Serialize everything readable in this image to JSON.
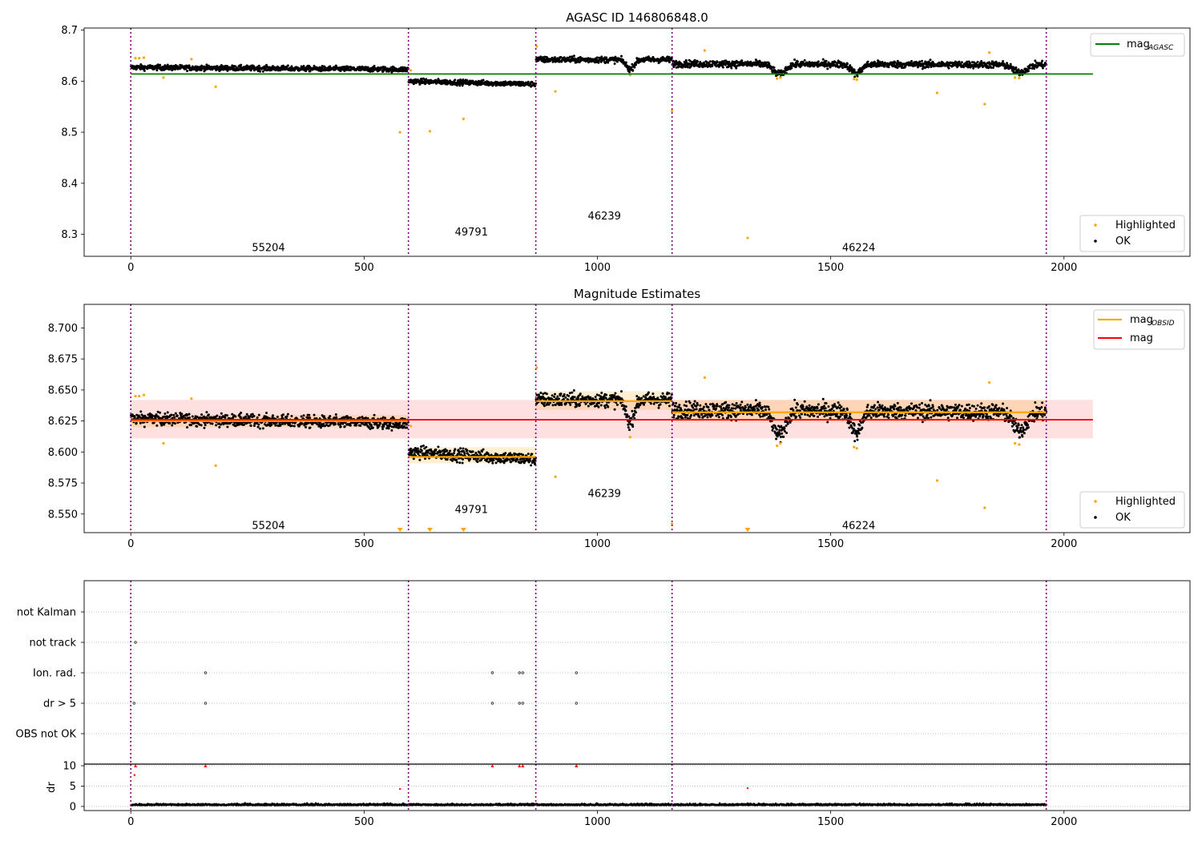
{
  "chart_data": [
    {
      "type": "scatter",
      "title": "AGASC ID 146806848.0",
      "xlim": [
        -100,
        2270
      ],
      "ylim": [
        8.257,
        8.704
      ],
      "x_ticks": [
        0,
        500,
        1000,
        1500,
        2000
      ],
      "y_ticks": [
        8.3,
        8.4,
        8.5,
        8.6,
        8.7
      ],
      "y_tick_labels": [
        "8.3",
        "8.4",
        "8.5",
        "8.6",
        "8.7"
      ],
      "legend_upper": {
        "location": "upper-right",
        "entries": [
          {
            "label": "mag",
            "subscript": "AGASC",
            "color": "#008000"
          }
        ]
      },
      "legend_lower": {
        "location": "lower-right",
        "entries": [
          {
            "label": "Highlighted",
            "color": "#ffa500"
          },
          {
            "label": "OK",
            "color": "#000000"
          }
        ]
      },
      "obsid_boundaries": [
        0,
        595,
        868,
        1160,
        1962
      ],
      "obsids": [
        {
          "label": "55204",
          "x": 295,
          "y": 8.275
        },
        {
          "label": "49791",
          "x": 730,
          "y": 8.306
        },
        {
          "label": "46239",
          "x": 1015,
          "y": 8.337
        },
        {
          "label": "46224",
          "x": 1560,
          "y": 8.275
        }
      ],
      "mag_agasc": {
        "value": 8.614,
        "x_range": [
          0,
          2062
        ]
      },
      "ok_segments": [
        {
          "x_range": [
            0,
            595
          ],
          "mean": 8.625,
          "spread": 0.006,
          "trend": -0.004
        },
        {
          "x_range": [
            595,
            868
          ],
          "mean": 8.597,
          "spread": 0.006,
          "trend": -0.006
        },
        {
          "x_range": [
            868,
            1160
          ],
          "mean": 8.642,
          "spread": 0.007,
          "trend": 0.0
        },
        {
          "x_range": [
            1160,
            1962
          ],
          "mean": 8.633,
          "spread": 0.008,
          "trend": -0.002
        }
      ],
      "ok_dips": [
        {
          "x": 1070,
          "depth": 0.018,
          "width": 12
        },
        {
          "x": 1390,
          "depth": 0.02,
          "width": 18
        },
        {
          "x": 1555,
          "depth": 0.018,
          "width": 15
        },
        {
          "x": 1905,
          "depth": 0.015,
          "width": 20
        }
      ],
      "highlighted": [
        {
          "x": 10,
          "y": 8.645
        },
        {
          "x": 18,
          "y": 8.645
        },
        {
          "x": 28,
          "y": 8.646
        },
        {
          "x": 70,
          "y": 8.607
        },
        {
          "x": 130,
          "y": 8.643
        },
        {
          "x": 182,
          "y": 8.589
        },
        {
          "x": 577,
          "y": 8.5
        },
        {
          "x": 600,
          "y": 8.621
        },
        {
          "x": 641,
          "y": 8.502
        },
        {
          "x": 713,
          "y": 8.526
        },
        {
          "x": 870,
          "y": 8.668
        },
        {
          "x": 910,
          "y": 8.58
        },
        {
          "x": 1070,
          "y": 8.612
        },
        {
          "x": 1160,
          "y": 8.542
        },
        {
          "x": 1230,
          "y": 8.66
        },
        {
          "x": 1322,
          "y": 8.293
        },
        {
          "x": 1385,
          "y": 8.605
        },
        {
          "x": 1392,
          "y": 8.607
        },
        {
          "x": 1550,
          "y": 8.604
        },
        {
          "x": 1556,
          "y": 8.603
        },
        {
          "x": 1728,
          "y": 8.577
        },
        {
          "x": 1830,
          "y": 8.555
        },
        {
          "x": 1840,
          "y": 8.656
        },
        {
          "x": 1895,
          "y": 8.607
        },
        {
          "x": 1904,
          "y": 8.606
        }
      ]
    },
    {
      "type": "scatter",
      "title": "Magnitude Estimates",
      "xlim": [
        -100,
        2270
      ],
      "ylim": [
        8.535,
        8.719
      ],
      "x_ticks": [
        0,
        500,
        1000,
        1500,
        2000
      ],
      "y_ticks": [
        8.55,
        8.575,
        8.6,
        8.625,
        8.65,
        8.675,
        8.7
      ],
      "y_tick_labels": [
        "8.550",
        "8.575",
        "8.600",
        "8.625",
        "8.650",
        "8.675",
        "8.700"
      ],
      "legend_upper": {
        "location": "upper-right",
        "entries": [
          {
            "label": "mag",
            "subscript": "OBSID",
            "color": "#ffa500"
          },
          {
            "label": "mag",
            "color": "#ff0000"
          }
        ]
      },
      "legend_lower": {
        "location": "lower-right",
        "entries": [
          {
            "label": "Highlighted",
            "color": "#ffa500"
          },
          {
            "label": "OK",
            "color": "#000000"
          }
        ]
      },
      "obsids": [
        {
          "label": "55204",
          "x": 295,
          "y": 8.541
        },
        {
          "label": "49791",
          "x": 730,
          "y": 8.554
        },
        {
          "label": "46239",
          "x": 1015,
          "y": 8.567
        },
        {
          "label": "46224",
          "x": 1560,
          "y": 8.541
        }
      ],
      "mag": {
        "value": 8.626,
        "band": [
          8.611,
          8.642
        ],
        "x_range": [
          0,
          2062
        ]
      },
      "mag_obsid": [
        {
          "x_range": [
            0,
            595
          ],
          "value": 8.625,
          "band": [
            8.62,
            8.63
          ]
        },
        {
          "x_range": [
            595,
            868
          ],
          "value": 8.596,
          "band": [
            8.591,
            8.604
          ]
        },
        {
          "x_range": [
            868,
            1160
          ],
          "value": 8.641,
          "band": [
            8.634,
            8.649
          ]
        },
        {
          "x_range": [
            1160,
            1962
          ],
          "value": 8.632,
          "band": [
            8.624,
            8.642
          ]
        }
      ],
      "offscale_markers": [
        {
          "x": 577
        },
        {
          "x": 641
        },
        {
          "x": 713
        },
        {
          "x": 1322
        }
      ]
    },
    {
      "type": "scatter",
      "xlim": [
        -100,
        2270
      ],
      "x_ticks": [
        0,
        500,
        1000,
        1500,
        2000
      ],
      "flag_categories": [
        "not Kalman",
        "not track",
        "Ion. rad.",
        "dr > 5",
        "OBS not OK"
      ],
      "flags": [
        {
          "category": "not track",
          "x": [
            10
          ]
        },
        {
          "category": "Ion. rad.",
          "x": [
            160,
            775,
            833,
            840,
            955
          ]
        },
        {
          "category": "dr > 5",
          "x": [
            7,
            160,
            775,
            833,
            840,
            955
          ]
        }
      ],
      "dr_panel": {
        "ylabel": "dr",
        "ylim": [
          -1,
          10.4
        ],
        "y_ticks": [
          0,
          5,
          10
        ],
        "y_tick_labels": [
          "0",
          "5",
          "10"
        ],
        "capped_points": [
          {
            "x": 10,
            "y": 10
          },
          {
            "x": 160,
            "y": 10
          },
          {
            "x": 775,
            "y": 10
          },
          {
            "x": 833,
            "y": 10
          },
          {
            "x": 840,
            "y": 10
          },
          {
            "x": 955,
            "y": 10
          }
        ],
        "outliers": [
          {
            "x": 8,
            "y": 7.7
          },
          {
            "x": 577,
            "y": 4.3
          },
          {
            "x": 1322,
            "y": 4.5
          }
        ],
        "baseline": 0.3
      }
    }
  ]
}
